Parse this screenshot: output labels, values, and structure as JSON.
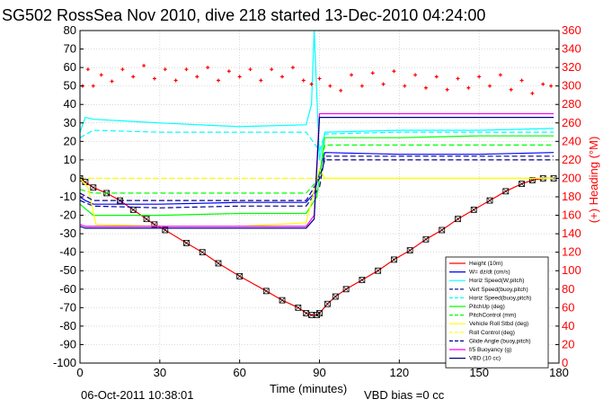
{
  "chart_data": {
    "type": "line",
    "title": "SG502 RossSea Nov 2010, dive 218 started 13-Dec-2010 04:24:00",
    "xlabel": "Time (minutes)",
    "ylabel_right": "(+) Heading (°M)",
    "footer_date": "06-Oct-2011 10:38:01",
    "footer_note": "VBD bias =0 cc",
    "xlim": [
      0,
      180
    ],
    "ylim_left": [
      -100,
      80
    ],
    "ylim_right": [
      0,
      360
    ],
    "x_ticks": [
      0,
      30,
      60,
      90,
      120,
      150,
      180
    ],
    "y_ticks_left": [
      -100,
      -90,
      -80,
      -70,
      -60,
      -50,
      -40,
      -30,
      -20,
      -10,
      0,
      10,
      20,
      30,
      40,
      50,
      60,
      70,
      80
    ],
    "y_ticks_right": [
      0,
      20,
      40,
      60,
      80,
      100,
      120,
      140,
      160,
      180,
      200,
      220,
      240,
      260,
      280,
      300,
      320,
      340,
      360
    ],
    "grid": true,
    "legend_position": "bottom-right",
    "colors": {
      "axis": "#000000",
      "right_axis": "#ff0000",
      "grid": "#c8c8c8"
    },
    "series": [
      {
        "name": "Height (10m)",
        "color": "#ff0000",
        "style": "solid-markers",
        "points": [
          [
            0,
            0
          ],
          [
            2,
            -2
          ],
          [
            5,
            -5
          ],
          [
            10,
            -8
          ],
          [
            15,
            -12
          ],
          [
            20,
            -17
          ],
          [
            25,
            -22
          ],
          [
            28,
            -25
          ],
          [
            32,
            -28
          ],
          [
            40,
            -35
          ],
          [
            46,
            -40
          ],
          [
            52,
            -46
          ],
          [
            60,
            -53
          ],
          [
            70,
            -61
          ],
          [
            76,
            -66
          ],
          [
            82,
            -70
          ],
          [
            85,
            -73
          ],
          [
            87,
            -74
          ],
          [
            89,
            -74
          ],
          [
            90,
            -73
          ],
          [
            93,
            -68
          ],
          [
            96,
            -64
          ],
          [
            100,
            -60
          ],
          [
            106,
            -55
          ],
          [
            112,
            -50
          ],
          [
            118,
            -44
          ],
          [
            124,
            -39
          ],
          [
            130,
            -33
          ],
          [
            136,
            -28
          ],
          [
            142,
            -22
          ],
          [
            148,
            -17
          ],
          [
            154,
            -12
          ],
          [
            160,
            -7
          ],
          [
            166,
            -3
          ],
          [
            170,
            -1
          ],
          [
            174,
            0
          ],
          [
            178,
            0
          ]
        ]
      },
      {
        "name": "W= dz/dt (cm/s)",
        "color": "#0000ff",
        "style": "solid",
        "points": [
          [
            0,
            -10
          ],
          [
            2,
            -12
          ],
          [
            5,
            -14
          ],
          [
            30,
            -14
          ],
          [
            60,
            -13
          ],
          [
            85,
            -13
          ],
          [
            88,
            -8
          ],
          [
            92,
            14
          ],
          [
            120,
            13
          ],
          [
            150,
            13
          ],
          [
            178,
            14
          ]
        ]
      },
      {
        "name": "Horiz Speed(W,pitch)",
        "color": "#00ffff",
        "style": "solid",
        "points": [
          [
            0,
            25
          ],
          [
            2,
            33
          ],
          [
            5,
            32
          ],
          [
            30,
            30
          ],
          [
            60,
            28
          ],
          [
            85,
            29
          ],
          [
            87,
            40
          ],
          [
            88,
            80
          ],
          [
            90,
            10
          ],
          [
            92,
            25
          ],
          [
            120,
            26
          ],
          [
            150,
            26
          ],
          [
            178,
            27
          ]
        ]
      },
      {
        "name": "Vert Speed(buoy,pitch)",
        "color": "#00008b",
        "style": "dashed",
        "points": [
          [
            0,
            -12
          ],
          [
            5,
            -15
          ],
          [
            30,
            -16
          ],
          [
            60,
            -15
          ],
          [
            85,
            -15
          ],
          [
            90,
            -5
          ],
          [
            92,
            12
          ],
          [
            120,
            12
          ],
          [
            150,
            12
          ],
          [
            178,
            12
          ]
        ]
      },
      {
        "name": "Horiz Speed(buoy,pitch)",
        "color": "#00ffff",
        "style": "dashed",
        "points": [
          [
            0,
            22
          ],
          [
            5,
            26
          ],
          [
            30,
            25
          ],
          [
            60,
            25
          ],
          [
            85,
            25
          ],
          [
            90,
            15
          ],
          [
            92,
            24
          ],
          [
            120,
            25
          ],
          [
            150,
            25
          ],
          [
            178,
            25
          ]
        ]
      },
      {
        "name": "PitchUp (deg)",
        "color": "#00ff00",
        "style": "solid",
        "points": [
          [
            0,
            -14
          ],
          [
            5,
            -20
          ],
          [
            30,
            -20
          ],
          [
            60,
            -19
          ],
          [
            85,
            -19
          ],
          [
            89,
            -10
          ],
          [
            92,
            22
          ],
          [
            120,
            22
          ],
          [
            150,
            23
          ],
          [
            178,
            23
          ]
        ]
      },
      {
        "name": "PitchControl (mm)",
        "color": "#00ff00",
        "style": "dashed",
        "points": [
          [
            0,
            -6
          ],
          [
            5,
            -8
          ],
          [
            30,
            -8
          ],
          [
            60,
            -8
          ],
          [
            85,
            -8
          ],
          [
            90,
            0
          ],
          [
            92,
            18
          ],
          [
            120,
            18
          ],
          [
            150,
            18
          ],
          [
            178,
            18
          ]
        ]
      },
      {
        "name": "Vehicle Roll Stbd (deg)",
        "color": "#ffff00",
        "style": "solid",
        "points": [
          [
            0,
            0
          ],
          [
            3,
            -5
          ],
          [
            6,
            -25
          ],
          [
            30,
            -26
          ],
          [
            60,
            -26
          ],
          [
            85,
            -24
          ],
          [
            90,
            5
          ],
          [
            92,
            0
          ],
          [
            120,
            0
          ],
          [
            150,
            0
          ],
          [
            178,
            0
          ]
        ]
      },
      {
        "name": "Roll Control (deg)",
        "color": "#ffff00",
        "style": "dashed",
        "points": [
          [
            0,
            0
          ],
          [
            5,
            0
          ],
          [
            30,
            0
          ],
          [
            60,
            0
          ],
          [
            85,
            0
          ],
          [
            90,
            0
          ],
          [
            120,
            0
          ],
          [
            150,
            0
          ],
          [
            178,
            0
          ]
        ]
      },
      {
        "name": "Glide Angle (buoy,pitch)",
        "color": "#00008b",
        "style": "dashed",
        "points": [
          [
            0,
            -8
          ],
          [
            5,
            -12
          ],
          [
            30,
            -12
          ],
          [
            60,
            -12
          ],
          [
            85,
            -12
          ],
          [
            90,
            0
          ],
          [
            92,
            10
          ],
          [
            120,
            10
          ],
          [
            150,
            10
          ],
          [
            178,
            10
          ]
        ]
      },
      {
        "name": "f/5 Buoyancy (g)",
        "color": "#ff00ff",
        "style": "solid",
        "points": [
          [
            0,
            -25
          ],
          [
            2,
            -26
          ],
          [
            30,
            -26
          ],
          [
            60,
            -26
          ],
          [
            85,
            -26
          ],
          [
            88,
            -20
          ],
          [
            90,
            35
          ],
          [
            120,
            35
          ],
          [
            150,
            35
          ],
          [
            178,
            35
          ]
        ]
      },
      {
        "name": "VBD (10 cc)",
        "color": "#000080",
        "style": "solid",
        "points": [
          [
            0,
            -26
          ],
          [
            2,
            -27
          ],
          [
            30,
            -27
          ],
          [
            60,
            -27
          ],
          [
            85,
            -27
          ],
          [
            88,
            -22
          ],
          [
            90,
            33
          ],
          [
            120,
            33
          ],
          [
            150,
            33
          ],
          [
            178,
            33
          ]
        ]
      }
    ],
    "heading": {
      "name": "(+) Heading",
      "color": "#ff0000",
      "axis": "right",
      "points": [
        [
          1,
          300
        ],
        [
          3,
          318
        ],
        [
          5,
          300
        ],
        [
          8,
          312
        ],
        [
          12,
          305
        ],
        [
          16,
          318
        ],
        [
          20,
          310
        ],
        [
          24,
          322
        ],
        [
          28,
          308
        ],
        [
          32,
          318
        ],
        [
          36,
          306
        ],
        [
          40,
          318
        ],
        [
          44,
          310
        ],
        [
          48,
          320
        ],
        [
          52,
          306
        ],
        [
          56,
          316
        ],
        [
          60,
          310
        ],
        [
          64,
          318
        ],
        [
          68,
          306
        ],
        [
          72,
          318
        ],
        [
          76,
          310
        ],
        [
          80,
          320
        ],
        [
          84,
          306
        ],
        [
          87,
          302
        ],
        [
          90,
          308
        ],
        [
          94,
          300
        ],
        [
          98,
          295
        ],
        [
          102,
          312
        ],
        [
          106,
          300
        ],
        [
          110,
          314
        ],
        [
          114,
          302
        ],
        [
          118,
          316
        ],
        [
          122,
          300
        ],
        [
          126,
          312
        ],
        [
          130,
          298
        ],
        [
          134,
          310
        ],
        [
          138,
          296
        ],
        [
          142,
          308
        ],
        [
          146,
          298
        ],
        [
          150,
          310
        ],
        [
          154,
          300
        ],
        [
          158,
          312
        ],
        [
          162,
          296
        ],
        [
          166,
          306
        ],
        [
          170,
          292
        ],
        [
          174,
          302
        ],
        [
          177,
          300
        ]
      ]
    }
  }
}
